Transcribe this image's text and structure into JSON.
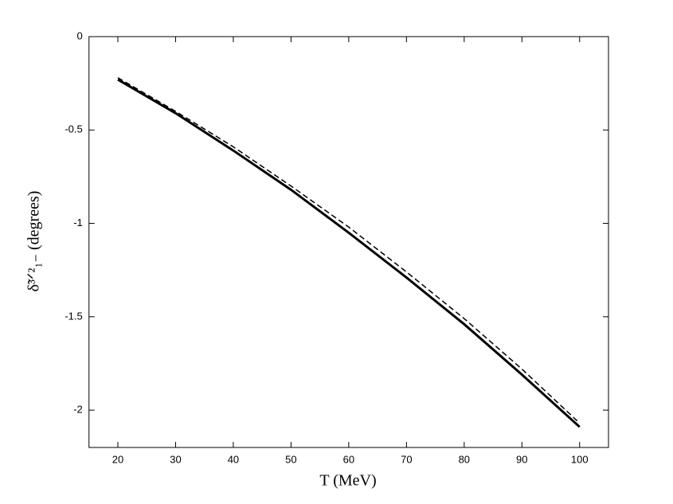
{
  "chart_data": {
    "type": "line",
    "x_label": "T (MeV)",
    "y_label": "δ̃³ᐟ²₁₋ (degrees)",
    "x": [
      20,
      30,
      40,
      50,
      60,
      70,
      80,
      90,
      100
    ],
    "series": [
      {
        "name": "solid",
        "color": "#000000",
        "dash": "solid",
        "values": [
          -0.23,
          -0.41,
          -0.61,
          -0.82,
          -1.05,
          -1.29,
          -1.54,
          -1.81,
          -2.09
        ]
      },
      {
        "name": "dashed",
        "color": "#000000",
        "dash": "dashed",
        "values": [
          -0.22,
          -0.4,
          -0.59,
          -0.8,
          -1.02,
          -1.26,
          -1.51,
          -1.78,
          -2.07
        ]
      }
    ],
    "xlim": [
      15,
      105
    ],
    "xticks": [
      20,
      30,
      40,
      50,
      60,
      70,
      80,
      90,
      100
    ],
    "ylim": [
      -2.2,
      0
    ],
    "yticks": [
      -2,
      -1.5,
      -1,
      -0.5,
      0
    ],
    "grid": false
  }
}
